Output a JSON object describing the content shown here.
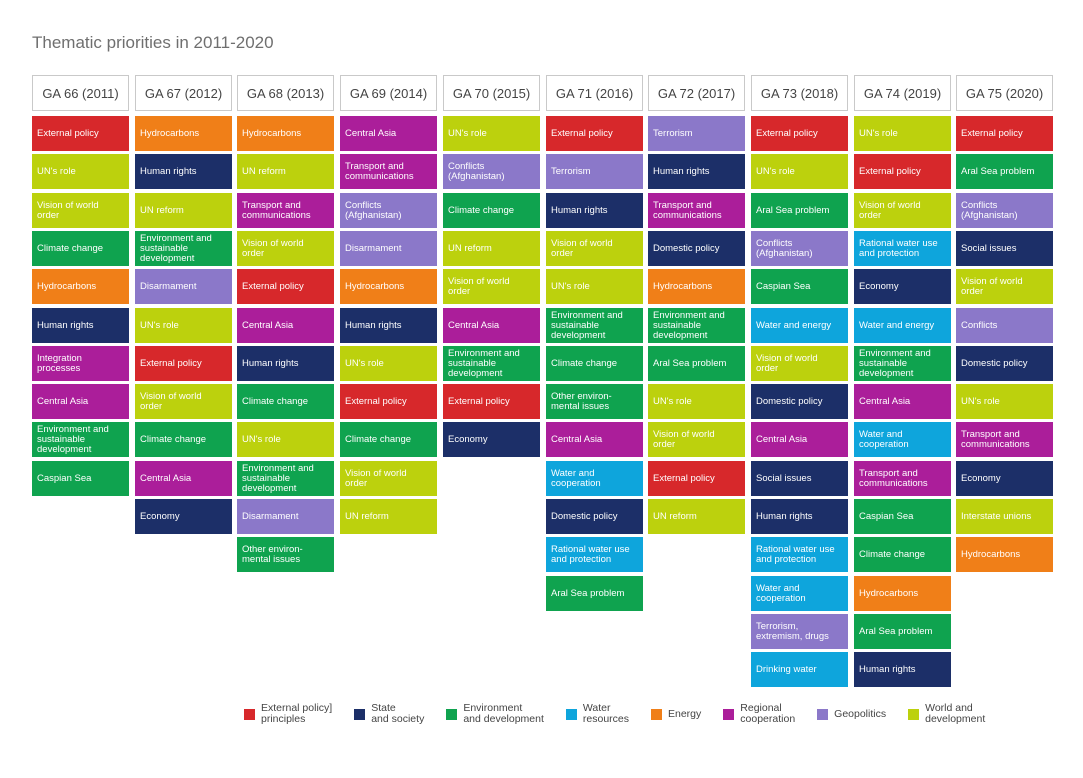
{
  "chart_data": {
    "type": "table",
    "title": "Thematic priorities in 2011-2020",
    "categories": {
      "ext": {
        "label": "External policy]\nprinciples",
        "color": "#d7282b"
      },
      "state": {
        "label": "State\nand society",
        "color": "#1c2f68"
      },
      "env": {
        "label": "Environment\nand development",
        "color": "#0fa34f"
      },
      "water": {
        "label": "Water\nresources",
        "color": "#0ea5dc"
      },
      "energy": {
        "label": "Energy",
        "color": "#f07f18"
      },
      "regional": {
        "label": "Regional\ncooperation",
        "color": "#ab1e9a"
      },
      "geo": {
        "label": "Geopolitics",
        "color": "#8b78c9"
      },
      "world": {
        "label": "World and\ndevelopment",
        "color": "#bcd10d"
      }
    },
    "columns": [
      {
        "header": "GA 66 (2011)",
        "items": [
          {
            "label": "External policy",
            "cat": "ext"
          },
          {
            "label": "UN's role",
            "cat": "world"
          },
          {
            "label": "Vision of world\norder",
            "cat": "world"
          },
          {
            "label": "Climate change",
            "cat": "env"
          },
          {
            "label": "Hydrocarbons",
            "cat": "energy"
          },
          {
            "label": "Human rights",
            "cat": "state"
          },
          {
            "label": "Integration\nprocesses",
            "cat": "regional"
          },
          {
            "label": "Central Asia",
            "cat": "regional"
          },
          {
            "label": "Environment and\nsustainable\ndevelopment",
            "cat": "env"
          },
          {
            "label": "Caspian Sea",
            "cat": "env"
          }
        ]
      },
      {
        "header": "GA 67 (2012)",
        "items": [
          {
            "label": "Hydrocarbons",
            "cat": "energy"
          },
          {
            "label": "Human rights",
            "cat": "state"
          },
          {
            "label": "UN reform",
            "cat": "world"
          },
          {
            "label": "Environment and\nsustainable\ndevelopment",
            "cat": "env"
          },
          {
            "label": "Disarmament",
            "cat": "geo"
          },
          {
            "label": "UN's role",
            "cat": "world"
          },
          {
            "label": "External policy",
            "cat": "ext"
          },
          {
            "label": "Vision of world\norder",
            "cat": "world"
          },
          {
            "label": "Climate change",
            "cat": "env"
          },
          {
            "label": "Central Asia",
            "cat": "regional"
          },
          {
            "label": "Economy",
            "cat": "state"
          }
        ]
      },
      {
        "header": "GA 68 (2013)",
        "items": [
          {
            "label": "Hydrocarbons",
            "cat": "energy"
          },
          {
            "label": "UN reform",
            "cat": "world"
          },
          {
            "label": "Transport and\ncommunications",
            "cat": "regional"
          },
          {
            "label": "Vision of world\norder",
            "cat": "world"
          },
          {
            "label": "External policy",
            "cat": "ext"
          },
          {
            "label": "Central Asia",
            "cat": "regional"
          },
          {
            "label": "Human rights",
            "cat": "state"
          },
          {
            "label": "Climate change",
            "cat": "env"
          },
          {
            "label": "UN's role",
            "cat": "world"
          },
          {
            "label": "Environment and\nsustainable\ndevelopment",
            "cat": "env"
          },
          {
            "label": "Disarmament",
            "cat": "geo"
          },
          {
            "label": "Other environ-\nmental issues",
            "cat": "env"
          }
        ]
      },
      {
        "header": "GA 69 (2014)",
        "items": [
          {
            "label": "Central Asia",
            "cat": "regional"
          },
          {
            "label": "Transport and\ncommunications",
            "cat": "regional"
          },
          {
            "label": "Conflicts\n(Afghanistan)",
            "cat": "geo"
          },
          {
            "label": "Disarmament",
            "cat": "geo"
          },
          {
            "label": "Hydrocarbons",
            "cat": "energy"
          },
          {
            "label": "Human rights",
            "cat": "state"
          },
          {
            "label": "UN's role",
            "cat": "world"
          },
          {
            "label": "External policy",
            "cat": "ext"
          },
          {
            "label": "Climate change",
            "cat": "env"
          },
          {
            "label": "Vision of world\norder",
            "cat": "world"
          },
          {
            "label": "UN reform",
            "cat": "world"
          }
        ]
      },
      {
        "header": "GA 70 (2015)",
        "items": [
          {
            "label": "UN's role",
            "cat": "world"
          },
          {
            "label": "Conflicts\n(Afghanistan)",
            "cat": "geo"
          },
          {
            "label": "Climate change",
            "cat": "env"
          },
          {
            "label": "UN reform",
            "cat": "world"
          },
          {
            "label": "Vision of world\norder",
            "cat": "world"
          },
          {
            "label": "Central Asia",
            "cat": "regional"
          },
          {
            "label": "Environment and\nsustainable\ndevelopment",
            "cat": "env"
          },
          {
            "label": "External policy",
            "cat": "ext"
          },
          {
            "label": "Economy",
            "cat": "state"
          }
        ]
      },
      {
        "header": "GA 71 (2016)",
        "items": [
          {
            "label": "External policy",
            "cat": "ext"
          },
          {
            "label": "Terrorism",
            "cat": "geo"
          },
          {
            "label": "Human rights",
            "cat": "state"
          },
          {
            "label": "Vision of world\norder",
            "cat": "world"
          },
          {
            "label": "UN's role",
            "cat": "world"
          },
          {
            "label": "Environment and\nsustainable\ndevelopment",
            "cat": "env"
          },
          {
            "label": "Climate change",
            "cat": "env"
          },
          {
            "label": "Other environ-\nmental issues",
            "cat": "env"
          },
          {
            "label": "Central Asia",
            "cat": "regional"
          },
          {
            "label": "Water and\ncooperation",
            "cat": "water"
          },
          {
            "label": "Domestic policy",
            "cat": "state"
          },
          {
            "label": "Rational water use\nand protection",
            "cat": "water"
          },
          {
            "label": "Aral Sea problem",
            "cat": "env"
          }
        ]
      },
      {
        "header": "GA 72 (2017)",
        "items": [
          {
            "label": "Terrorism",
            "cat": "geo"
          },
          {
            "label": "Human rights",
            "cat": "state"
          },
          {
            "label": "Transport and\ncommunications",
            "cat": "regional"
          },
          {
            "label": "Domestic policy",
            "cat": "state"
          },
          {
            "label": "Hydrocarbons",
            "cat": "energy"
          },
          {
            "label": "Environment and\nsustainable\ndevelopment",
            "cat": "env"
          },
          {
            "label": "Aral Sea problem",
            "cat": "env"
          },
          {
            "label": "UN's role",
            "cat": "world"
          },
          {
            "label": "Vision of world\norder",
            "cat": "world"
          },
          {
            "label": "External policy",
            "cat": "ext"
          },
          {
            "label": "UN reform",
            "cat": "world"
          }
        ]
      },
      {
        "header": "GA 73 (2018)",
        "items": [
          {
            "label": "External policy",
            "cat": "ext"
          },
          {
            "label": "UN's role",
            "cat": "world"
          },
          {
            "label": "Aral Sea problem",
            "cat": "env"
          },
          {
            "label": "Conflicts\n(Afghanistan)",
            "cat": "geo"
          },
          {
            "label": "Caspian Sea",
            "cat": "env"
          },
          {
            "label": "Water and energy",
            "cat": "water"
          },
          {
            "label": "Vision of world\norder",
            "cat": "world"
          },
          {
            "label": "Domestic policy",
            "cat": "state"
          },
          {
            "label": "Central Asia",
            "cat": "regional"
          },
          {
            "label": "Social issues",
            "cat": "state"
          },
          {
            "label": "Human rights",
            "cat": "state"
          },
          {
            "label": "Rational water use\nand protection",
            "cat": "water"
          },
          {
            "label": "Water and\ncooperation",
            "cat": "water"
          },
          {
            "label": "Terrorism,\nextremism, drugs",
            "cat": "geo"
          },
          {
            "label": "Drinking water",
            "cat": "water"
          }
        ]
      },
      {
        "header": "GA 74 (2019)",
        "items": [
          {
            "label": "UN's role",
            "cat": "world"
          },
          {
            "label": "External policy",
            "cat": "ext"
          },
          {
            "label": "Vision of world\norder",
            "cat": "world"
          },
          {
            "label": "Rational water use\nand protection",
            "cat": "water"
          },
          {
            "label": "Economy",
            "cat": "state"
          },
          {
            "label": "Water and energy",
            "cat": "water"
          },
          {
            "label": "Environment and\nsustainable\ndevelopment",
            "cat": "env"
          },
          {
            "label": "Central Asia",
            "cat": "regional"
          },
          {
            "label": "Water and\ncooperation",
            "cat": "water"
          },
          {
            "label": "Transport and\ncommunications",
            "cat": "regional"
          },
          {
            "label": "Caspian Sea",
            "cat": "env"
          },
          {
            "label": "Climate change",
            "cat": "env"
          },
          {
            "label": "Hydrocarbons",
            "cat": "energy"
          },
          {
            "label": "Aral Sea problem",
            "cat": "env"
          },
          {
            "label": "Human rights",
            "cat": "state"
          }
        ]
      },
      {
        "header": "GA 75 (2020)",
        "items": [
          {
            "label": "External policy",
            "cat": "ext"
          },
          {
            "label": "Aral Sea problem",
            "cat": "env"
          },
          {
            "label": "Conflicts\n(Afghanistan)",
            "cat": "geo"
          },
          {
            "label": "Social issues",
            "cat": "state"
          },
          {
            "label": "Vision of world\norder",
            "cat": "world"
          },
          {
            "label": "Conflicts",
            "cat": "geo"
          },
          {
            "label": "Domestic policy",
            "cat": "state"
          },
          {
            "label": "UN's role",
            "cat": "world"
          },
          {
            "label": "Transport and\ncommunications",
            "cat": "regional"
          },
          {
            "label": "Economy",
            "cat": "state"
          },
          {
            "label": "Interstate unions",
            "cat": "world"
          },
          {
            "label": "Hydrocarbons",
            "cat": "energy"
          }
        ]
      }
    ],
    "legend_order": [
      "ext",
      "state",
      "env",
      "water",
      "energy",
      "regional",
      "geo",
      "world"
    ],
    "legend_position": "bottom"
  }
}
